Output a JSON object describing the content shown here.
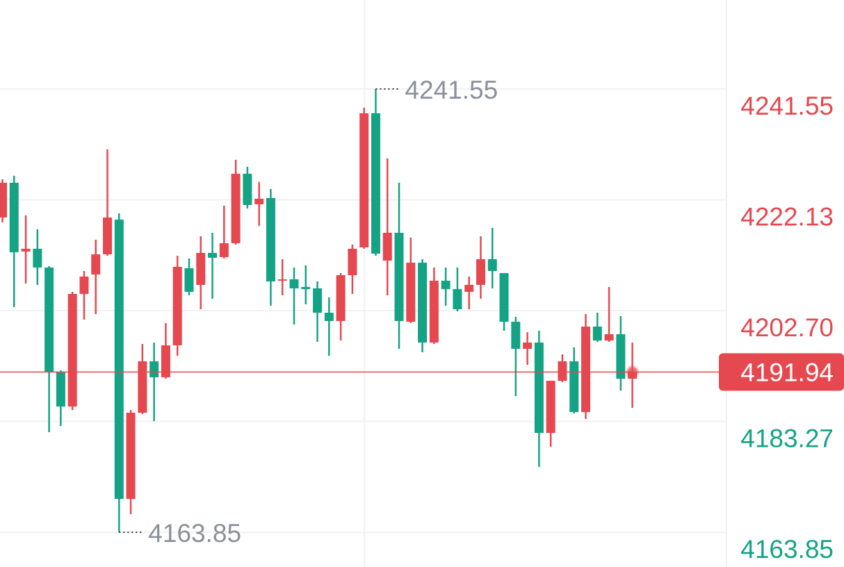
{
  "chart_data": {
    "type": "candlestick",
    "up_color": "#e5484f",
    "down_color": "#14a385",
    "ylim": [
      4157.76,
      4257.14
    ],
    "yticks": [
      4241.55,
      4222.13,
      {
        "value": 4202.7,
        "label": "4202.70"
      },
      4183.27,
      4163.85
    ],
    "grid": true,
    "last_price": 4191.94,
    "max_annotation": 4241.55,
    "min_annotation": 4163.85,
    "open": [
      4219.02,
      4225.11,
      4213.05,
      4213.54,
      4210.25,
      4191.98,
      4185.89,
      4205.62,
      4209.03,
      4212.56,
      4218.65,
      4169.69,
      4184.8,
      4193.81,
      4191.01,
      4196.61,
      4210.13,
      4207.21,
      4212.81,
      4212.08,
      4214.51,
      4226.69,
      4221.33,
      4222.43,
      4207.94,
      4208.18,
      4206.84,
      4206.6,
      4202.33,
      4200.87,
      4208.91,
      4213.78,
      4237.29,
      4211.47,
      4216.34,
      4200.75,
      4211.1,
      4197.1,
      4207.94,
      4206.47,
      4205.99,
      4207.21,
      4211.71,
      4209.28,
      4200.75,
      4196.0,
      4197.1,
      4181.26,
      4190.4,
      4193.81,
      4184.92,
      4199.9,
      4197.46,
      4198.56,
      4190.76
    ],
    "high": [
      4225.72,
      4226.33,
      4219.38,
      4216.95,
      4210.49,
      4192.23,
      4205.99,
      4209.64,
      4215.12,
      4230.95,
      4219.75,
      4185.28,
      4196.85,
      4197.1,
      4200.51,
      4212.32,
      4211.83,
      4215.73,
      4216.34,
      4221.09,
      4229.13,
      4227.91,
      4225.23,
      4224.01,
      4211.71,
      4210.25,
      4210.62,
      4207.81,
      4205.01,
      4209.28,
      4214.27,
      4238.26,
      4241.55,
      4229.37,
      4225.11,
      4215.49,
      4211.71,
      4210.25,
      4210.25,
      4210.25,
      4208.67,
      4215.73,
      4217.19,
      4209.28,
      4201.6,
      4198.92,
      4199.17,
      4190.4,
      4195.03,
      4196.24,
      4202.09,
      4202.33,
      4206.84,
      4201.72,
      4197.1
    ],
    "low": [
      4218.17,
      4203.31,
      4207.45,
      4207.21,
      4181.39,
      4182.48,
      4185.28,
      4201.12,
      4202.09,
      4212.32,
      4163.85,
      4167.01,
      4184.55,
      4183.33,
      4190.76,
      4194.78,
      4205.38,
      4202.94,
      4204.77,
      4211.83,
      4214.27,
      4220.6,
      4217.56,
      4203.55,
      4205.38,
      4200.26,
      4203.8,
      4197.22,
      4194.78,
      4197.46,
      4205.62,
      4213.54,
      4212.32,
      4205.38,
      4196.0,
      4200.51,
      4195.39,
      4196.85,
      4203.55,
      4202.58,
      4202.94,
      4204.77,
      4206.6,
      4199.17,
      4187.72,
      4193.2,
      4175.3,
      4178.83,
      4190.15,
      4184.67,
      4183.7,
      4197.22,
      4197.22,
      4188.69,
      4185.65
    ],
    "close": [
      4225.11,
      4212.93,
      4213.54,
      4210.25,
      4191.98,
      4185.89,
      4205.62,
      4208.67,
      4212.56,
      4219.02,
      4169.69,
      4184.8,
      4193.81,
      4191.01,
      4196.61,
      4210.37,
      4205.99,
      4212.81,
      4211.96,
      4214.51,
      4226.69,
      4221.21,
      4222.31,
      4207.81,
      4208.18,
      4206.6,
      4206.47,
      4202.33,
      4200.87,
      4208.91,
      4213.54,
      4237.29,
      4212.69,
      4216.34,
      4200.87,
      4211.1,
      4197.1,
      4207.94,
      4206.47,
      4202.94,
      4207.21,
      4211.71,
      4209.64,
      4200.75,
      4196.0,
      4197.1,
      4181.26,
      4190.4,
      4193.81,
      4184.92,
      4199.9,
      4197.46,
      4198.56,
      4190.76,
      4191.94
    ]
  }
}
